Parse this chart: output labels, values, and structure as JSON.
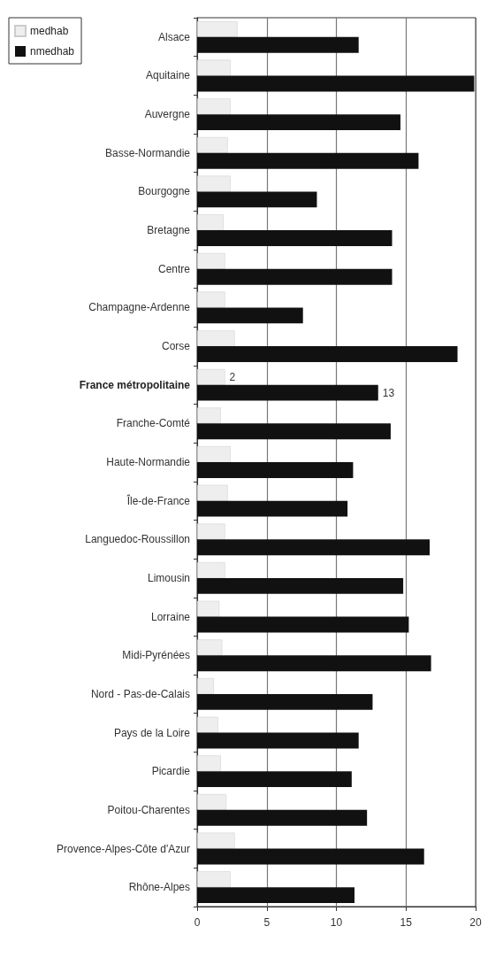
{
  "chart_data": {
    "type": "bar",
    "orientation": "horizontal",
    "categories": [
      "Alsace",
      "Aquitaine",
      "Auvergne",
      "Basse-Normandie",
      "Bourgogne",
      "Bretagne",
      "Centre",
      "Champagne-Ardenne",
      "Corse",
      "France métropolitaine",
      "Franche-Comté",
      "Haute-Normandie",
      "Île-de-France",
      "Languedoc-Roussillon",
      "Limousin",
      "Lorraine",
      "Midi-Pyrénées",
      "Nord - Pas-de-Calais",
      "Pays de la Loire",
      "Picardie",
      "Poitou-Charentes",
      "Provence-Alpes-Côte d'Azur",
      "Rhône-Alpes"
    ],
    "series": [
      {
        "name": "medhab",
        "color": "#eeeeee",
        "values": [
          2.9,
          2.4,
          2.4,
          2.2,
          2.4,
          1.9,
          2.0,
          2.0,
          2.7,
          2,
          1.7,
          2.4,
          2.2,
          2.0,
          2.0,
          1.6,
          1.8,
          1.2,
          1.5,
          1.7,
          2.1,
          2.7,
          2.4
        ],
        "value_labels": [
          null,
          null,
          null,
          null,
          null,
          null,
          null,
          null,
          null,
          "2",
          null,
          null,
          null,
          null,
          null,
          null,
          null,
          null,
          null,
          null,
          null,
          null,
          null
        ]
      },
      {
        "name": "nmedhab",
        "color": "#111111",
        "values": [
          11.6,
          19.9,
          14.6,
          15.9,
          8.6,
          14.0,
          14.0,
          7.6,
          18.7,
          13,
          13.9,
          11.2,
          10.8,
          16.7,
          14.8,
          15.2,
          16.8,
          12.6,
          11.6,
          11.1,
          12.2,
          16.3,
          11.3
        ],
        "value_labels": [
          null,
          null,
          null,
          null,
          null,
          null,
          null,
          null,
          null,
          "13",
          null,
          null,
          null,
          null,
          null,
          null,
          null,
          null,
          null,
          null,
          null,
          null,
          null
        ]
      }
    ],
    "xlim": [
      0,
      20
    ],
    "xticks": [
      0,
      5,
      10,
      15,
      20
    ],
    "grid": "x",
    "legend": "top left"
  }
}
